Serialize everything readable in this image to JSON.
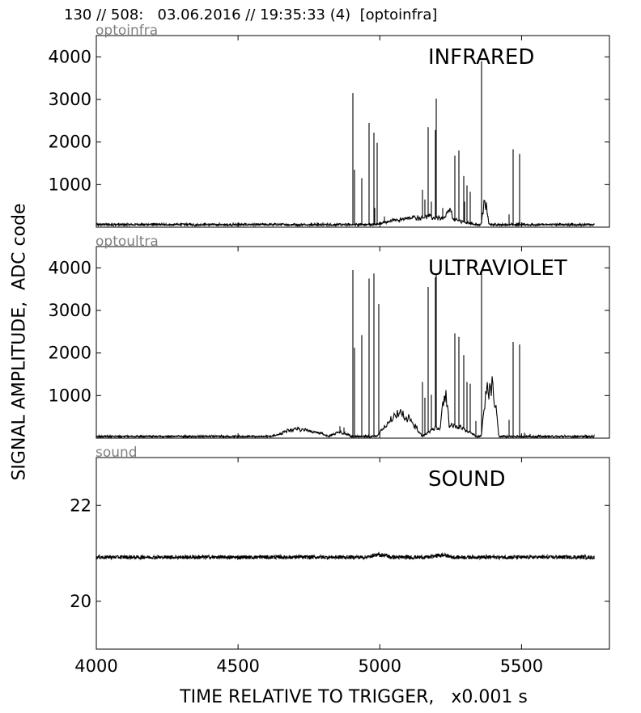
{
  "header": "130 // 508:   03.06.2016 // 19:35:33 (4)  [optoinfra]",
  "chart_data": {
    "type": "line",
    "shared_xlabel": "TIME RELATIVE TO TRIGGER,   x0.001 s",
    "shared_ylabel": "SIGNAL AMPLITUDE,  ADC code",
    "xlim": [
      4000,
      5810
    ],
    "xticks": [
      4000,
      4500,
      5000,
      5500
    ],
    "grid": false,
    "panels": [
      {
        "tag": "optoinfra",
        "title": "INFRARED",
        "ylim": [
          0,
          4500
        ],
        "yticks": [
          1000,
          2000,
          3000,
          4000
        ],
        "baseline": 60,
        "noise": 25,
        "x_end": 5755,
        "color": "#000000",
        "peaks": [
          {
            "x": 4905,
            "y": 3150
          },
          {
            "x": 4912,
            "y": 1350
          },
          {
            "x": 4935,
            "y": 1150
          },
          {
            "x": 4962,
            "y": 2450
          },
          {
            "x": 4978,
            "y": 2220
          },
          {
            "x": 4982,
            "y": 450
          },
          {
            "x": 4992,
            "y": 1980
          },
          {
            "x": 5015,
            "y": 250
          },
          {
            "x": 5050,
            "y": 200
          },
          {
            "x": 5150,
            "y": 880
          },
          {
            "x": 5160,
            "y": 650
          },
          {
            "x": 5170,
            "y": 2350
          },
          {
            "x": 5182,
            "y": 600
          },
          {
            "x": 5195,
            "y": 2280
          },
          {
            "x": 5200,
            "y": 3020
          },
          {
            "x": 5210,
            "y": 250
          },
          {
            "x": 5222,
            "y": 450
          },
          {
            "x": 5238,
            "y": 320
          },
          {
            "x": 5265,
            "y": 1680
          },
          {
            "x": 5280,
            "y": 1800
          },
          {
            "x": 5295,
            "y": 1200
          },
          {
            "x": 5300,
            "y": 600
          },
          {
            "x": 5308,
            "y": 980
          },
          {
            "x": 5320,
            "y": 830
          },
          {
            "x": 5358,
            "y": 3900
          },
          {
            "x": 5455,
            "y": 300
          },
          {
            "x": 5470,
            "y": 1830
          },
          {
            "x": 5493,
            "y": 1720
          }
        ],
        "humps": [
          {
            "x0": 4980,
            "x1": 5340,
            "y": 170
          },
          {
            "x0": 5230,
            "x1": 5260,
            "y": 220
          },
          {
            "x0": 5358,
            "x1": 5385,
            "y": 500
          }
        ]
      },
      {
        "tag": "optoultra",
        "title": "ULTRAVIOLET",
        "ylim": [
          0,
          4500
        ],
        "yticks": [
          1000,
          2000,
          3000,
          4000
        ],
        "baseline": 40,
        "noise": 20,
        "x_end": 5755,
        "color": "#000000",
        "peaks": [
          {
            "x": 4860,
            "y": 280
          },
          {
            "x": 4875,
            "y": 250
          },
          {
            "x": 4905,
            "y": 3950
          },
          {
            "x": 4912,
            "y": 2120
          },
          {
            "x": 4935,
            "y": 2420
          },
          {
            "x": 4962,
            "y": 3750
          },
          {
            "x": 4978,
            "y": 3870
          },
          {
            "x": 4995,
            "y": 3150
          },
          {
            "x": 5150,
            "y": 1320
          },
          {
            "x": 5160,
            "y": 950
          },
          {
            "x": 5170,
            "y": 3550
          },
          {
            "x": 5182,
            "y": 1020
          },
          {
            "x": 5195,
            "y": 3780
          },
          {
            "x": 5200,
            "y": 3870
          },
          {
            "x": 5230,
            "y": 1000
          },
          {
            "x": 5265,
            "y": 2460
          },
          {
            "x": 5280,
            "y": 2380
          },
          {
            "x": 5295,
            "y": 1950
          },
          {
            "x": 5308,
            "y": 1320
          },
          {
            "x": 5320,
            "y": 1280
          },
          {
            "x": 5340,
            "y": 400
          },
          {
            "x": 5358,
            "y": 3880
          },
          {
            "x": 5455,
            "y": 430
          },
          {
            "x": 5470,
            "y": 2260
          },
          {
            "x": 5493,
            "y": 2200
          },
          {
            "x": 5510,
            "y": 130
          },
          {
            "x": 5530,
            "y": 100
          }
        ],
        "humps": [
          {
            "x0": 4620,
            "x1": 4820,
            "y": 160
          },
          {
            "x0": 4820,
            "x1": 4900,
            "y": 90
          },
          {
            "x0": 4990,
            "x1": 5150,
            "y": 500
          },
          {
            "x0": 5150,
            "x1": 5340,
            "y": 280
          },
          {
            "x0": 5215,
            "x1": 5245,
            "y": 650
          },
          {
            "x0": 5358,
            "x1": 5420,
            "y": 1200
          }
        ]
      },
      {
        "tag": "sound",
        "title": "SOUND",
        "ylim": [
          19,
          23
        ],
        "yticks": [
          20,
          22
        ],
        "baseline": 20.92,
        "noise": 0.04,
        "x_end": 5755,
        "color": "#000000",
        "peaks": [],
        "humps": [
          {
            "x0": 4960,
            "x1": 5040,
            "y": 0.05
          },
          {
            "x0": 5180,
            "x1": 5260,
            "y": 0.04
          }
        ]
      }
    ]
  }
}
